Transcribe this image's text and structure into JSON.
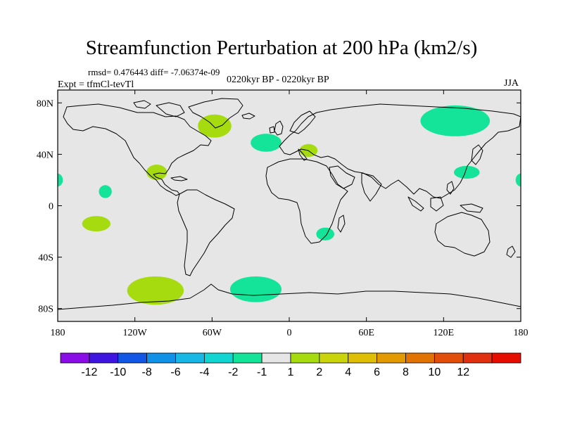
{
  "title": "Streamfunction Perturbation at 200 hPa (km2/s)",
  "stats": "rmsd= 0.476443 diff= -7.06374e-09",
  "experiment": "Expt = tfmCl-tevTl",
  "period": "0220kyr BP - 0220kyr BP",
  "season": "JJA",
  "map": {
    "projection": "cylindrical-equidistant",
    "lon_range": [
      -180,
      180
    ],
    "lat_range": [
      -90,
      90
    ],
    "background_color": "#e6e6e6",
    "lon_tick_labels": [
      {
        "lon": -180,
        "label": "180"
      },
      {
        "lon": -120,
        "label": "120W"
      },
      {
        "lon": -60,
        "label": "60W"
      },
      {
        "lon": 0,
        "label": "0"
      },
      {
        "lon": 60,
        "label": "60E"
      },
      {
        "lon": 120,
        "label": "120E"
      },
      {
        "lon": 180,
        "label": "180"
      }
    ],
    "lat_tick_labels": [
      {
        "lat": 80,
        "label": "80N"
      },
      {
        "lat": 40,
        "label": "40N"
      },
      {
        "lat": 0,
        "label": "0"
      },
      {
        "lat": -40,
        "label": "40S"
      },
      {
        "lat": -80,
        "label": "80S"
      }
    ],
    "anomalies": [
      {
        "name": "anomaly-north-atlantic-labrador",
        "lon": -58,
        "lat": 62,
        "rlon": 13,
        "rlat": 9,
        "level": "1 to 2",
        "color": "#a5db0f"
      },
      {
        "name": "anomaly-north-atlantic-central",
        "lon": -18,
        "lat": 49,
        "rlon": 12,
        "rlat": 7,
        "level": "-2 to -1",
        "color": "#14e39a"
      },
      {
        "name": "anomaly-europe-mediterranean",
        "lon": 15,
        "lat": 43,
        "rlon": 7,
        "rlat": 5,
        "level": "1 to 2",
        "color": "#a5db0f"
      },
      {
        "name": "anomaly-east-asia-north",
        "lon": 129,
        "lat": 66,
        "rlon": 27,
        "rlat": 12,
        "level": "-2 to -1",
        "color": "#14e39a"
      },
      {
        "name": "anomaly-east-asia-south",
        "lon": 138,
        "lat": 26,
        "rlon": 10,
        "rlat": 5,
        "level": "-2 to -1",
        "color": "#14e39a"
      },
      {
        "name": "anomaly-mexico",
        "lon": -103,
        "lat": 26,
        "rlon": 8,
        "rlat": 6,
        "level": "1 to 2",
        "color": "#a5db0f"
      },
      {
        "name": "anomaly-central-pacific-north",
        "lon": -143,
        "lat": 11,
        "rlon": 5,
        "rlat": 5,
        "level": "-2 to -1",
        "color": "#14e39a"
      },
      {
        "name": "anomaly-dateline-west",
        "lon": -180,
        "lat": 20,
        "rlon": 4,
        "rlat": 5,
        "level": "-2 to -1",
        "color": "#14e39a"
      },
      {
        "name": "anomaly-dateline-east",
        "lon": 180,
        "lat": 20,
        "rlon": 4,
        "rlat": 5,
        "level": "-2 to -1",
        "color": "#14e39a"
      },
      {
        "name": "anomaly-south-pacific",
        "lon": -150,
        "lat": -14,
        "rlon": 11,
        "rlat": 6,
        "level": "1 to 2",
        "color": "#a5db0f"
      },
      {
        "name": "anomaly-southern-africa",
        "lon": 28,
        "lat": -22,
        "rlon": 7,
        "rlat": 5,
        "level": "-2 to -1",
        "color": "#14e39a"
      },
      {
        "name": "anomaly-south-pacific-high-lat",
        "lon": -104,
        "lat": -66,
        "rlon": 22,
        "rlat": 11,
        "level": "1 to 2",
        "color": "#a5db0f"
      },
      {
        "name": "anomaly-south-atlantic-high-lat",
        "lon": -26,
        "lat": -65,
        "rlon": 20,
        "rlat": 10,
        "level": "-2 to -1",
        "color": "#14e39a"
      }
    ]
  },
  "colorbar": {
    "colors": [
      "#8a0ce6",
      "#3d14e0",
      "#1256e5",
      "#0f91e8",
      "#17b8e6",
      "#10d5d0",
      "#14e39a",
      "#e6e6e6",
      "#a5db0f",
      "#c9d40a",
      "#dfbf05",
      "#e39a00",
      "#e37300",
      "#e24d0a",
      "#e0300f",
      "#e60c00"
    ],
    "labels": [
      "-12",
      "-10",
      "-8",
      "-6",
      "-4",
      "-2",
      "-1",
      "1",
      "2",
      "4",
      "6",
      "8",
      "10",
      "12"
    ]
  }
}
